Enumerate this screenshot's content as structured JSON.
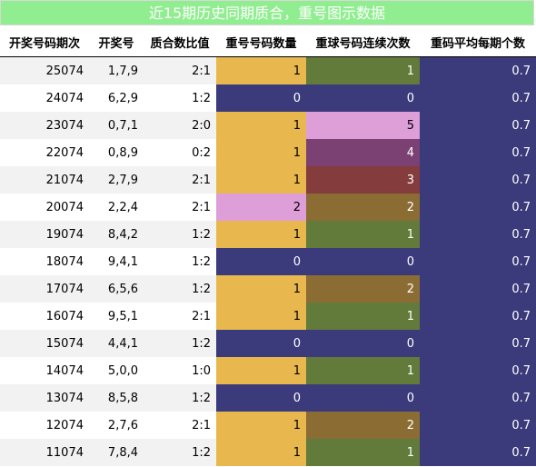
{
  "title": "近15期历史同期质合，重号图示数据",
  "headers": [
    "开奖号码期次",
    "开奖号",
    "质合数比值",
    "重号号码数量",
    "重球号码连续次数",
    "重码平均每期个数"
  ],
  "colors": {
    "count": {
      "0": "#3b3b7b",
      "1": "#e8b84f",
      "2": "#de9fd9"
    },
    "streak": {
      "0": "#3b3b7b",
      "1": "#627a3a",
      "2": "#8b6d34",
      "3": "#843c3c",
      "4": "#7b4173",
      "5": "#de9fd9"
    },
    "avg": "#3b3b7b"
  },
  "rows": [
    {
      "issue": "25074",
      "numbers": "1,7,9",
      "ratio": "2:1",
      "repeat_count": "1",
      "streak": "1",
      "avg": "0.7"
    },
    {
      "issue": "24074",
      "numbers": "6,2,9",
      "ratio": "1:2",
      "repeat_count": "0",
      "streak": "0",
      "avg": "0.7"
    },
    {
      "issue": "23074",
      "numbers": "0,7,1",
      "ratio": "2:0",
      "repeat_count": "1",
      "streak": "5",
      "avg": "0.7"
    },
    {
      "issue": "22074",
      "numbers": "0,8,9",
      "ratio": "0:2",
      "repeat_count": "1",
      "streak": "4",
      "avg": "0.7"
    },
    {
      "issue": "21074",
      "numbers": "2,7,9",
      "ratio": "2:1",
      "repeat_count": "1",
      "streak": "3",
      "avg": "0.7"
    },
    {
      "issue": "20074",
      "numbers": "2,2,4",
      "ratio": "2:1",
      "repeat_count": "2",
      "streak": "2",
      "avg": "0.7"
    },
    {
      "issue": "19074",
      "numbers": "8,4,2",
      "ratio": "1:2",
      "repeat_count": "1",
      "streak": "1",
      "avg": "0.7"
    },
    {
      "issue": "18074",
      "numbers": "9,4,1",
      "ratio": "1:2",
      "repeat_count": "0",
      "streak": "0",
      "avg": "0.7"
    },
    {
      "issue": "17074",
      "numbers": "6,5,6",
      "ratio": "1:2",
      "repeat_count": "1",
      "streak": "2",
      "avg": "0.7"
    },
    {
      "issue": "16074",
      "numbers": "9,5,1",
      "ratio": "2:1",
      "repeat_count": "1",
      "streak": "1",
      "avg": "0.7"
    },
    {
      "issue": "15074",
      "numbers": "4,4,1",
      "ratio": "1:2",
      "repeat_count": "0",
      "streak": "0",
      "avg": "0.7"
    },
    {
      "issue": "14074",
      "numbers": "5,0,0",
      "ratio": "1:0",
      "repeat_count": "1",
      "streak": "1",
      "avg": "0.7"
    },
    {
      "issue": "13074",
      "numbers": "8,5,8",
      "ratio": "1:2",
      "repeat_count": "0",
      "streak": "0",
      "avg": "0.7"
    },
    {
      "issue": "12074",
      "numbers": "2,7,6",
      "ratio": "2:1",
      "repeat_count": "1",
      "streak": "2",
      "avg": "0.7"
    },
    {
      "issue": "11074",
      "numbers": "7,8,4",
      "ratio": "1:2",
      "repeat_count": "1",
      "streak": "1",
      "avg": "0.7"
    }
  ]
}
